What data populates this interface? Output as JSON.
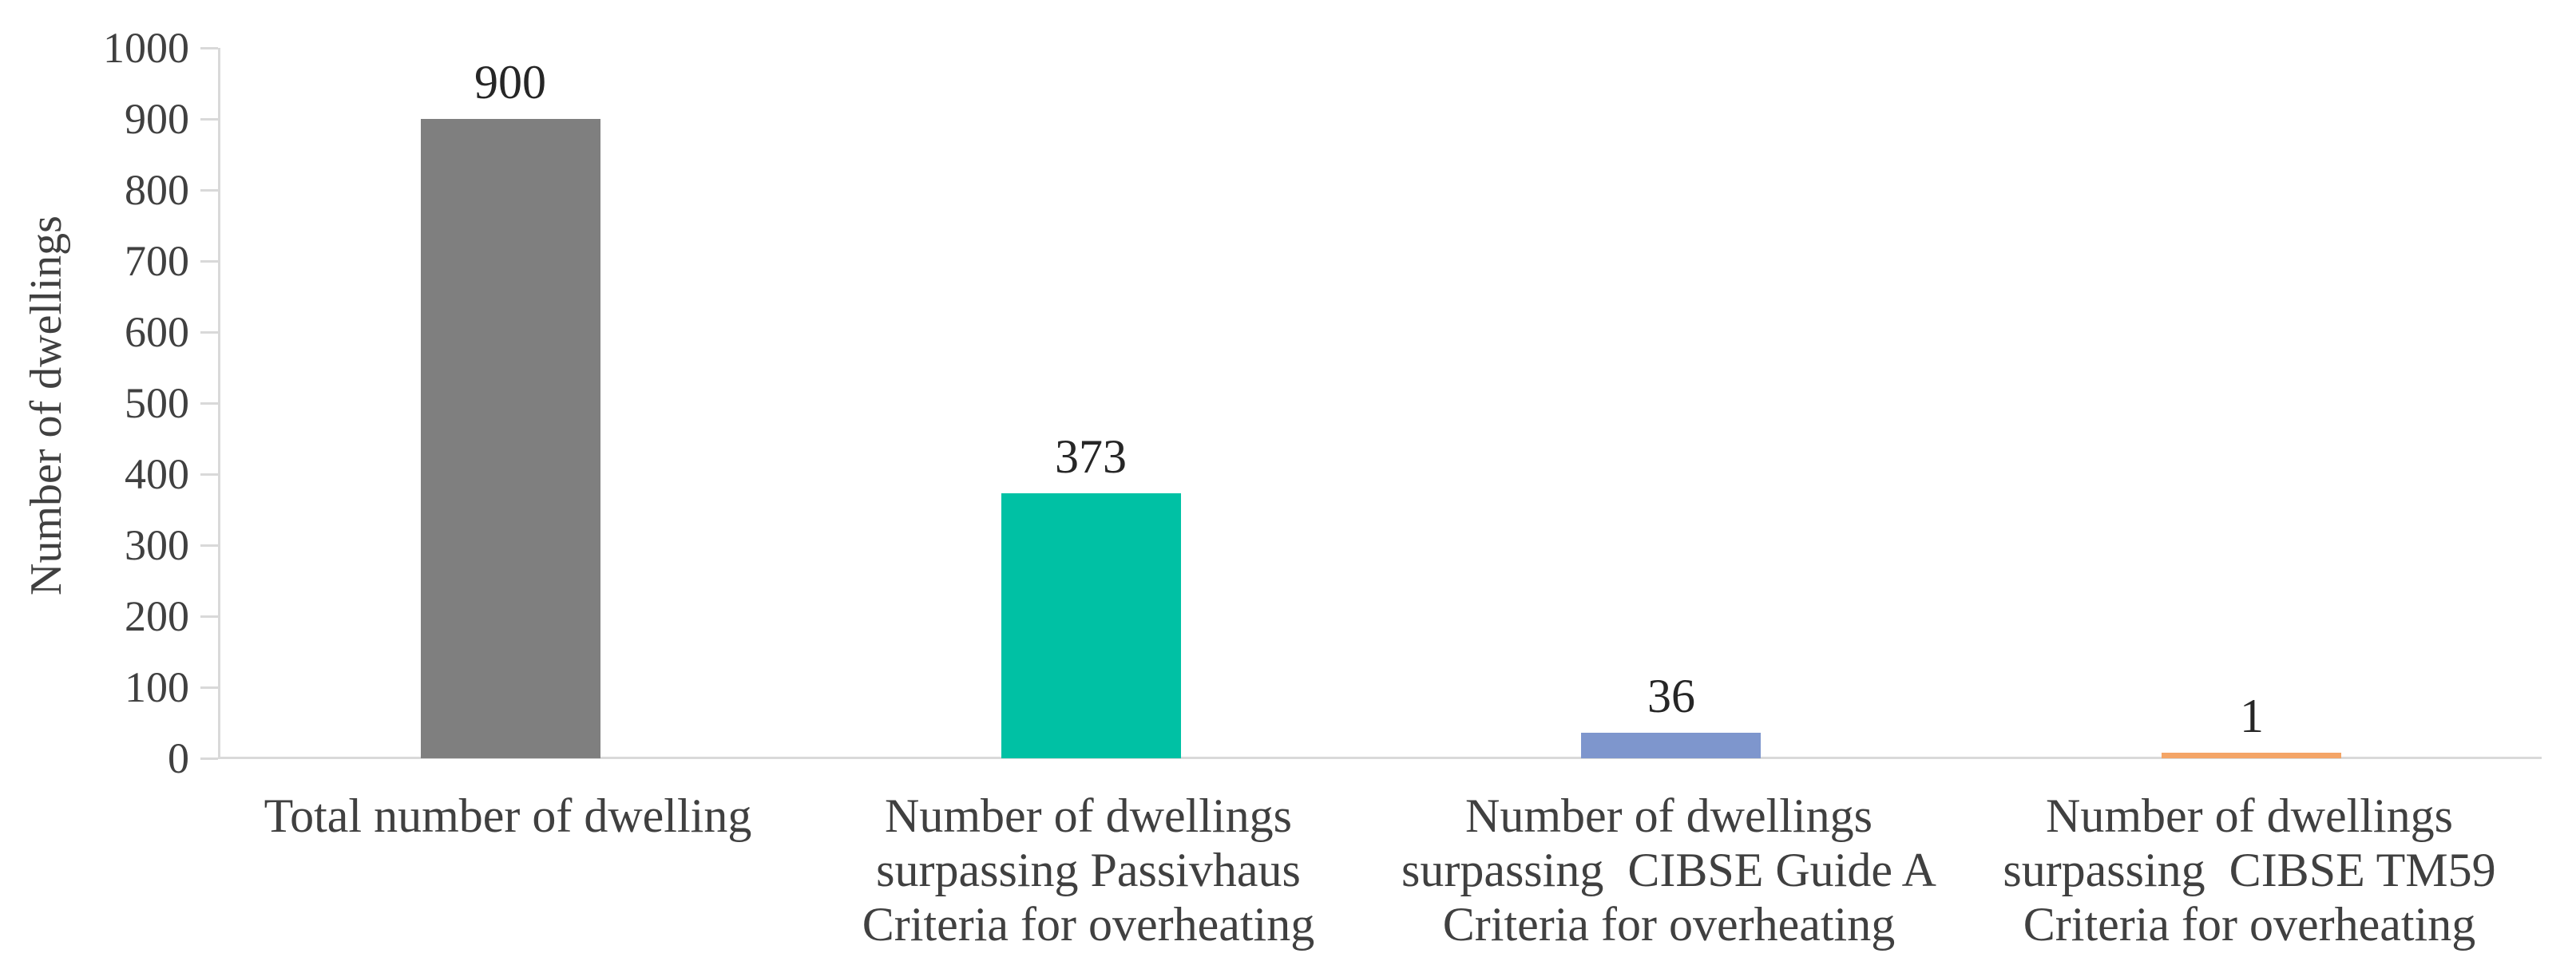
{
  "chart_data": {
    "type": "bar",
    "title": "",
    "xlabel": "",
    "ylabel": "Number of dwellings",
    "ylim": [
      0,
      1000
    ],
    "ytick_step": 100,
    "yticks": [
      0,
      100,
      200,
      300,
      400,
      500,
      600,
      700,
      800,
      900,
      1000
    ],
    "grid": false,
    "legend": "none",
    "categories": [
      {
        "lines": [
          "Total number of dwelling"
        ]
      },
      {
        "lines": [
          "Number of dwellings",
          "surpassing Passivhaus",
          "Criteria for overheating"
        ]
      },
      {
        "lines": [
          "Number of dwellings",
          "surpassing  CIBSE Guide A",
          "Criteria for overheating"
        ]
      },
      {
        "lines": [
          "Number of dwellings",
          "surpassing  CIBSE TM59",
          "Criteria for overheating"
        ]
      }
    ],
    "values": [
      900,
      373,
      36,
      1
    ],
    "data_labels": [
      "900",
      "373",
      "36",
      "1"
    ],
    "bar_colors": [
      "#7F7F7F",
      "#00C1A4",
      "#7E96CD",
      "#F4A567"
    ]
  },
  "colors": {
    "axis_line": "#D9D9D9",
    "tick_label": "#404040",
    "category_label": "#404040",
    "value_label": "#262626",
    "background": "#FFFFFF"
  }
}
